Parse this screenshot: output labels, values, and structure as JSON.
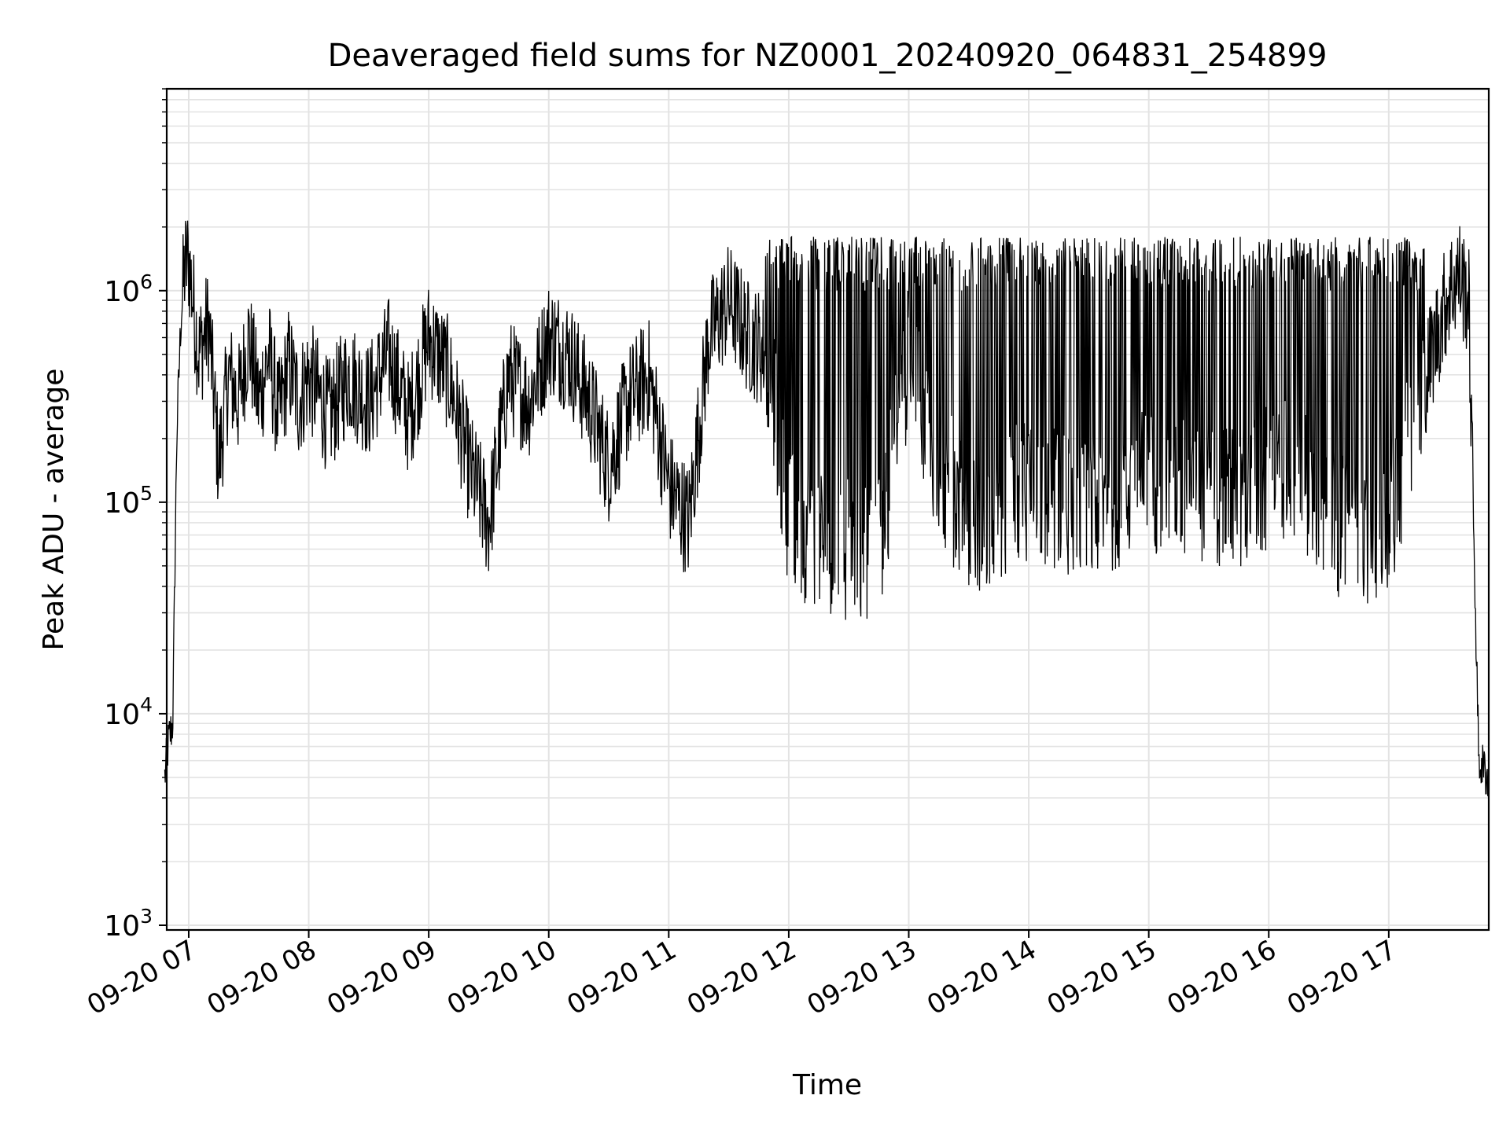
{
  "chart_data": {
    "type": "line",
    "title": "Deaveraged field sums for NZ0001_20240920_064831_254899",
    "xlabel": "Time",
    "ylabel": "Peak ADU - average",
    "yscale": "log",
    "ylim": [
      950,
      9000000
    ],
    "xlim": [
      "09-20 06:49",
      "09-20 17:50"
    ],
    "grid": true,
    "x_tick_labels": [
      "09-20 07",
      "09-20 08",
      "09-20 09",
      "09-20 10",
      "09-20 11",
      "09-20 12",
      "09-20 13",
      "09-20 14",
      "09-20 15",
      "09-20 16",
      "09-20 17"
    ],
    "x_tick_hours": [
      7,
      8,
      9,
      10,
      11,
      12,
      13,
      14,
      15,
      16,
      17
    ],
    "y_tick_labels": [
      {
        "base": "10",
        "exp": "3",
        "value": 1000
      },
      {
        "base": "10",
        "exp": "4",
        "value": 10000
      },
      {
        "base": "10",
        "exp": "5",
        "value": 100000
      },
      {
        "base": "10",
        "exp": "6",
        "value": 1000000
      }
    ],
    "line_color": "#000000",
    "series": [
      {
        "x": [
          "09-20 06:48",
          "09-20 06:50",
          "09-20 06:52",
          "09-20 06:54",
          "09-20 06:56",
          "09-20 06:58",
          "09-20 07:00",
          "09-20 07:05",
          "09-20 07:10",
          "09-20 07:15",
          "09-20 07:20",
          "09-20 07:25",
          "09-20 07:30",
          "09-20 07:35",
          "09-20 07:40",
          "09-20 07:45",
          "09-20 07:50",
          "09-20 07:55",
          "09-20 08:00",
          "09-20 08:10",
          "09-20 08:20",
          "09-20 08:30",
          "09-20 08:40",
          "09-20 08:50",
          "09-20 09:00",
          "09-20 09:10",
          "09-20 09:20",
          "09-20 09:30",
          "09-20 09:40",
          "09-20 09:50",
          "09-20 10:00",
          "09-20 10:10",
          "09-20 10:20",
          "09-20 10:30",
          "09-20 10:40",
          "09-20 10:50",
          "09-20 11:00",
          "09-20 11:10",
          "09-20 11:20",
          "09-20 11:30",
          "09-20 11:40",
          "09-20 11:50",
          "09-20 12:00",
          "09-20 12:15",
          "09-20 12:30",
          "09-20 12:45",
          "09-20 13:00",
          "09-20 13:15",
          "09-20 13:30",
          "09-20 13:45",
          "09-20 14:00",
          "09-20 14:15",
          "09-20 14:30",
          "09-20 14:45",
          "09-20 15:00",
          "09-20 15:15",
          "09-20 15:30",
          "09-20 15:45",
          "09-20 16:00",
          "09-20 16:15",
          "09-20 16:30",
          "09-20 16:45",
          "09-20 17:00",
          "09-20 17:15",
          "09-20 17:30",
          "09-20 17:35",
          "09-20 17:40",
          "09-20 17:45",
          "09-20 17:50"
        ],
        "y": [
          5000,
          7500,
          9000,
          200000,
          700000,
          1300000,
          1400000,
          500000,
          700000,
          150000,
          400000,
          300000,
          600000,
          300000,
          500000,
          250000,
          450000,
          300000,
          400000,
          250000,
          400000,
          300000,
          500000,
          250000,
          600000,
          400000,
          150000,
          80000,
          400000,
          300000,
          600000,
          500000,
          300000,
          150000,
          300000,
          400000,
          120000,
          80000,
          600000,
          900000,
          600000,
          500000,
          80000,
          70000,
          60000,
          60000,
          500000,
          150000,
          80000,
          90000,
          120000,
          100000,
          90000,
          110000,
          130000,
          120000,
          110000,
          100000,
          130000,
          150000,
          80000,
          70000,
          80000,
          300000,
          1000000,
          1200000,
          900000,
          6000,
          5000
        ]
      }
    ]
  }
}
